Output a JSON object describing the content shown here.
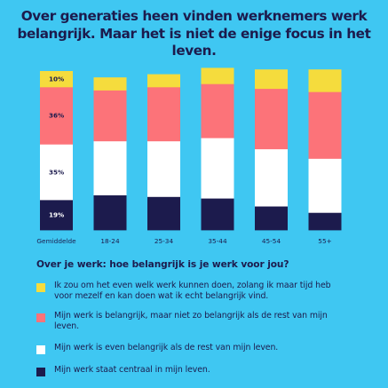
{
  "title": "Over generaties heen vinden werknemers werk belangrijk. Maar het is niet de enige focus in het leven.",
  "question": "Over je werk: hoe belangrijk is je werk voor jou?",
  "colors": {
    "background": "#3fc7f2",
    "yellow": "#f5dc3d",
    "pink": "#fc7379",
    "white": "#ffffff",
    "navy": "#1c1b4d"
  },
  "legend": [
    {
      "color_key": "yellow",
      "label": "Ik zou om het even welk werk kunnen doen, zolang ik maar tijd heb voor mezelf en kan doen wat ik echt belangrijk vind."
    },
    {
      "color_key": "pink",
      "label": "Mijn werk is belangrijk, maar niet zo belangrijk als de rest van mijn leven."
    },
    {
      "color_key": "white",
      "label": "Mijn werk is even belangrijk als de rest van mijn leven."
    },
    {
      "color_key": "navy",
      "label": "Mijn werk staat centraal in mijn leven."
    }
  ],
  "chart_data": {
    "type": "bar",
    "stacked": true,
    "title": "Over generaties heen vinden werknemers werk belangrijk. Maar het is niet de enige focus in het leven.",
    "categories": [
      "Gemiddelde",
      "18-24",
      "25-34",
      "35-44",
      "45-54",
      "55+"
    ],
    "series": [
      {
        "color_key": "navy",
        "values": [
          19,
          22,
          21,
          20,
          15,
          11
        ],
        "labels": [
          "19%",
          "",
          "",
          "",
          "",
          ""
        ]
      },
      {
        "color_key": "white",
        "values": [
          35,
          34,
          35,
          38,
          36,
          34
        ],
        "labels": [
          "35%",
          "",
          "",
          "",
          "",
          ""
        ]
      },
      {
        "color_key": "pink",
        "values": [
          36,
          32,
          34,
          34,
          38,
          42
        ],
        "labels": [
          "36%",
          "",
          "",
          "",
          "",
          ""
        ]
      },
      {
        "color_key": "yellow",
        "values": [
          10,
          8,
          8,
          10,
          12,
          14
        ],
        "labels": [
          "10%",
          "",
          "",
          "",
          "",
          ""
        ]
      }
    ],
    "ylim": [
      0,
      100
    ],
    "grid": false,
    "legend_position": "bottom"
  }
}
